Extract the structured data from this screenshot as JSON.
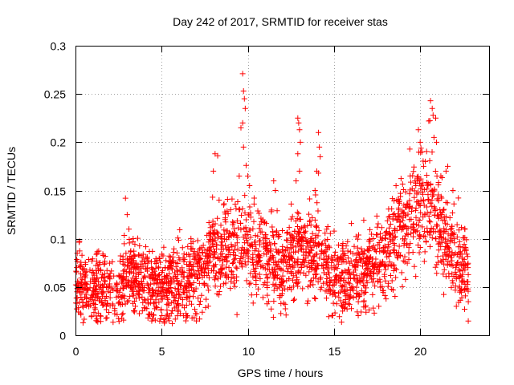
{
  "chart_data": {
    "type": "scatter",
    "title": "Day 242 of 2017, SRMTID for receiver stas",
    "xlabel": "GPS time / hours",
    "ylabel": "SRMTID / TECUs",
    "xlim": [
      0,
      24
    ],
    "ylim": [
      0,
      0.3
    ],
    "xticks": [
      0,
      5,
      10,
      15,
      20
    ],
    "xtick_labels": [
      "0",
      "5",
      "10",
      "15",
      "20"
    ],
    "yticks": [
      0,
      0.05,
      0.1,
      0.15,
      0.2,
      0.25,
      0.3
    ],
    "ytick_labels": [
      "0",
      "0.05",
      "0.1",
      "0.15",
      "0.2",
      "0.25",
      "0.3"
    ],
    "grid": true,
    "marker": "+",
    "color": "#ff0000",
    "series": [
      {
        "name": "stas",
        "profile": {
          "x": [
            0,
            0.5,
            1,
            1.5,
            2,
            2.5,
            3,
            3.5,
            4,
            4.5,
            5,
            5.5,
            6,
            6.5,
            7,
            7.5,
            8,
            8.5,
            9,
            9.5,
            10,
            10.5,
            11,
            11.5,
            12,
            12.5,
            13,
            13.5,
            14,
            14.5,
            15,
            15.5,
            16,
            16.5,
            17,
            17.5,
            18,
            18.5,
            19,
            19.5,
            20,
            20.5,
            21,
            21.5,
            22,
            22.5,
            22.8
          ],
          "y": [
            0.055,
            0.05,
            0.048,
            0.05,
            0.045,
            0.05,
            0.065,
            0.06,
            0.055,
            0.05,
            0.05,
            0.055,
            0.055,
            0.05,
            0.065,
            0.075,
            0.09,
            0.085,
            0.09,
            0.1,
            0.095,
            0.085,
            0.085,
            0.075,
            0.07,
            0.08,
            0.085,
            0.08,
            0.085,
            0.075,
            0.06,
            0.055,
            0.06,
            0.065,
            0.07,
            0.075,
            0.085,
            0.1,
            0.11,
            0.13,
            0.14,
            0.14,
            0.12,
            0.1,
            0.085,
            0.07,
            0.065
          ]
        },
        "spread": 0.022,
        "n_points": 2400,
        "highlights": [
          {
            "x": 2.9,
            "y": 0.142
          },
          {
            "x": 3.0,
            "y": 0.125
          },
          {
            "x": 3.1,
            "y": 0.11
          },
          {
            "x": 8.1,
            "y": 0.188
          },
          {
            "x": 8.25,
            "y": 0.186
          },
          {
            "x": 8.0,
            "y": 0.17
          },
          {
            "x": 9.7,
            "y": 0.271
          },
          {
            "x": 9.75,
            "y": 0.253
          },
          {
            "x": 9.8,
            "y": 0.245
          },
          {
            "x": 9.85,
            "y": 0.235
          },
          {
            "x": 9.7,
            "y": 0.22
          },
          {
            "x": 9.6,
            "y": 0.215
          },
          {
            "x": 9.75,
            "y": 0.195
          },
          {
            "x": 9.9,
            "y": 0.176
          },
          {
            "x": 9.5,
            "y": 0.165
          },
          {
            "x": 12.9,
            "y": 0.225
          },
          {
            "x": 12.95,
            "y": 0.22
          },
          {
            "x": 13.0,
            "y": 0.213
          },
          {
            "x": 13.05,
            "y": 0.2
          },
          {
            "x": 12.9,
            "y": 0.188
          },
          {
            "x": 13.0,
            "y": 0.17
          },
          {
            "x": 12.8,
            "y": 0.16
          },
          {
            "x": 14.1,
            "y": 0.21
          },
          {
            "x": 14.15,
            "y": 0.195
          },
          {
            "x": 14.2,
            "y": 0.185
          },
          {
            "x": 14.0,
            "y": 0.17
          },
          {
            "x": 14.1,
            "y": 0.168
          },
          {
            "x": 13.9,
            "y": 0.15
          },
          {
            "x": 11.5,
            "y": 0.16
          },
          {
            "x": 11.6,
            "y": 0.15
          },
          {
            "x": 10.0,
            "y": 0.165
          },
          {
            "x": 10.1,
            "y": 0.155
          },
          {
            "x": 8.6,
            "y": 0.135
          },
          {
            "x": 20.6,
            "y": 0.243
          },
          {
            "x": 20.7,
            "y": 0.235
          },
          {
            "x": 20.75,
            "y": 0.228
          },
          {
            "x": 20.5,
            "y": 0.222
          },
          {
            "x": 20.9,
            "y": 0.225
          },
          {
            "x": 20.8,
            "y": 0.205
          },
          {
            "x": 20.95,
            "y": 0.2
          },
          {
            "x": 19.9,
            "y": 0.213
          },
          {
            "x": 20.0,
            "y": 0.2
          },
          {
            "x": 20.1,
            "y": 0.19
          },
          {
            "x": 20.3,
            "y": 0.18
          },
          {
            "x": 20.2,
            "y": 0.175
          },
          {
            "x": 21.6,
            "y": 0.175
          },
          {
            "x": 21.5,
            "y": 0.17
          },
          {
            "x": 21.2,
            "y": 0.165
          },
          {
            "x": 19.7,
            "y": 0.16
          },
          {
            "x": 18.6,
            "y": 0.155
          },
          {
            "x": 21.9,
            "y": 0.15
          },
          {
            "x": 0.1,
            "y": 0.085
          },
          {
            "x": 2.5,
            "y": 0.017
          },
          {
            "x": 6.4,
            "y": 0.015
          },
          {
            "x": 6.5,
            "y": 0.02
          },
          {
            "x": 1.2,
            "y": 0.02
          },
          {
            "x": 0.3,
            "y": 0.023
          },
          {
            "x": 15.5,
            "y": 0.025
          },
          {
            "x": 22.1,
            "y": 0.03
          },
          {
            "x": 17.6,
            "y": 0.03
          }
        ]
      }
    ]
  }
}
